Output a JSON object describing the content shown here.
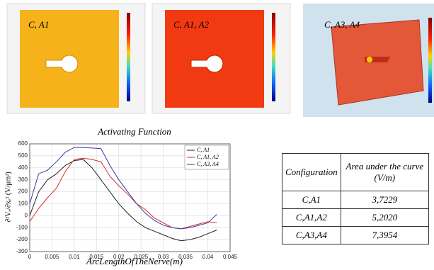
{
  "panels": [
    {
      "label": "C, A1"
    },
    {
      "label": "C, A1, A2"
    },
    {
      "label": "C, A3, A4"
    }
  ],
  "chart_data": {
    "type": "line",
    "title": "Activating Function",
    "x_label": "ArcLengthOfTheNerve(m)",
    "y_label": "∂²Vₑ/∂xₑ² (V/μm²)",
    "x": [
      0,
      0.002,
      0.004,
      0.006,
      0.008,
      0.01,
      0.012,
      0.014,
      0.016,
      0.018,
      0.02,
      0.022,
      0.024,
      0.026,
      0.028,
      0.03,
      0.032,
      0.034,
      0.036,
      0.038,
      0.04,
      0.042
    ],
    "series": [
      {
        "name": "C, A1",
        "color": "#222222",
        "values": [
          0,
          200,
          300,
          350,
          420,
          460,
          470,
          400,
          300,
          200,
          100,
          20,
          -50,
          -100,
          -130,
          -160,
          -190,
          -210,
          -200,
          -180,
          -150,
          -120
        ]
      },
      {
        "name": "C, A1, A2",
        "color": "#d0302a",
        "values": [
          -50,
          60,
          150,
          230,
          370,
          470,
          480,
          470,
          450,
          330,
          250,
          180,
          100,
          50,
          -20,
          -60,
          -100,
          -110,
          -90,
          -70,
          -50,
          -60
        ]
      },
      {
        "name": "C, A3, A4",
        "color": "#3a3aa0",
        "values": [
          100,
          350,
          380,
          450,
          530,
          570,
          570,
          565,
          560,
          420,
          300,
          200,
          100,
          20,
          -40,
          -80,
          -100,
          -110,
          -100,
          -80,
          -60,
          10
        ]
      }
    ],
    "xlim": [
      0,
      0.045
    ],
    "xticks": [
      0,
      0.005,
      0.01,
      0.015,
      0.02,
      0.025,
      0.03,
      0.035,
      0.04,
      0.045
    ],
    "ylim": [
      -300,
      600
    ],
    "yticks": [
      -300,
      -200,
      -100,
      0,
      100,
      200,
      300,
      400,
      500,
      600
    ],
    "grid": true,
    "legend": "upper-right"
  },
  "table": {
    "header": [
      "Configuration",
      "Area under the curve (V/m)"
    ],
    "rows": [
      [
        "C,A1",
        "3,7229"
      ],
      [
        "C,A1,A2",
        "5,2020"
      ],
      [
        "C,A3,A4",
        "7,3954"
      ]
    ]
  }
}
